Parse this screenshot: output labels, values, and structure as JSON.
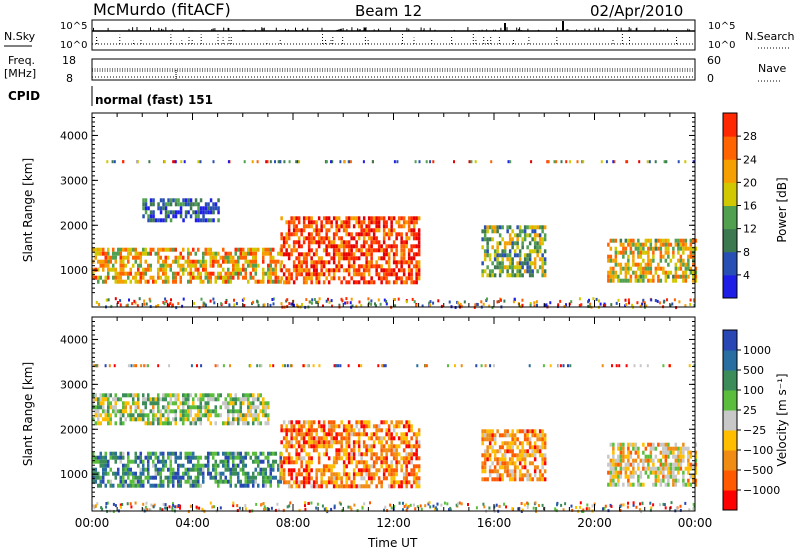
{
  "header": {
    "station": "McMurdo (fitACF)",
    "beam": "Beam 12",
    "date": "02/Apr/2010"
  },
  "top_panels": {
    "nsky_label": "N.Sky",
    "nsky_ticks": [
      "10^5",
      "10^0"
    ],
    "nsearch_label": "N.Search",
    "nsearch_ticks": [
      "10^5",
      "10^0"
    ],
    "freq_label_1": "Freq.",
    "freq_label_2": "[MHz]",
    "freq_ticks": [
      "18",
      "8"
    ],
    "nave_label": "Nave",
    "nave_ticks": [
      "60",
      "0"
    ],
    "cpid_label": "CPID",
    "cpid_value": "normal (fast) 151"
  },
  "colors": {
    "power_scale": [
      "#1e1ee6",
      "#2850b4",
      "#3c7850",
      "#50a050",
      "#d2c800",
      "#f5a000",
      "#ff6400",
      "#ff2800",
      "#e60000"
    ],
    "velocity_scale": [
      "#2846b4",
      "#286ea0",
      "#3c8c5a",
      "#5abe3c",
      "#c8c8c8",
      "#ffbe00",
      "#f08c14",
      "#ff5a00",
      "#ff0000"
    ]
  },
  "chart_data": [
    {
      "type": "heatmap",
      "title": "Power",
      "ylabel": "Slant Range [km]",
      "xlabel": "",
      "x_ticks": [
        "00:00",
        "04:00",
        "08:00",
        "12:00",
        "16:00",
        "20:00",
        "00:00"
      ],
      "y_ticks": [
        1000,
        2000,
        3000,
        4000
      ],
      "ylim": [
        180,
        4500
      ],
      "colorbar_label": "Power [dB]",
      "colorbar_ticks": [
        "4",
        "8",
        "12",
        "16",
        "20",
        "24",
        "28"
      ],
      "echo_regions": [
        {
          "t0": 0.0,
          "t1": 7.5,
          "r0": 700,
          "r1": 1500,
          "level": 0.6
        },
        {
          "t0": 7.5,
          "t1": 13.0,
          "r0": 700,
          "r1": 2200,
          "level": 0.8
        },
        {
          "t0": 15.5,
          "t1": 18.0,
          "r0": 900,
          "r1": 2000,
          "level": 0.4
        },
        {
          "t0": 20.5,
          "t1": 24.0,
          "r0": 800,
          "r1": 1700,
          "level": 0.55
        },
        {
          "t0": 2.0,
          "t1": 5.0,
          "r0": 2100,
          "r1": 2600,
          "level": 0.2
        }
      ]
    },
    {
      "type": "heatmap",
      "title": "Velocity",
      "ylabel": "Slant Range [km]",
      "xlabel": "Time UT",
      "x_ticks": [
        "00:00",
        "04:00",
        "08:00",
        "12:00",
        "16:00",
        "20:00",
        "00:00"
      ],
      "y_ticks": [
        1000,
        2000,
        3000,
        4000
      ],
      "ylim": [
        180,
        4500
      ],
      "colorbar_label": "Velocity [m s⁻¹]",
      "colorbar_ticks": [
        "1000",
        "500",
        "100",
        "25",
        "−25",
        "−100",
        "−500",
        "−1000"
      ],
      "echo_regions": [
        {
          "t0": 0.0,
          "t1": 7.5,
          "r0": 700,
          "r1": 1500,
          "level": 0.25
        },
        {
          "t0": 7.5,
          "t1": 13.0,
          "r0": 700,
          "r1": 2200,
          "level": 0.75
        },
        {
          "t0": 15.5,
          "t1": 18.0,
          "r0": 900,
          "r1": 2000,
          "level": 0.7
        },
        {
          "t0": 20.5,
          "t1": 24.0,
          "r0": 800,
          "r1": 1700,
          "level": 0.6
        },
        {
          "t0": 0.0,
          "t1": 7.0,
          "r0": 2100,
          "r1": 2800,
          "level": 0.45
        }
      ]
    }
  ]
}
